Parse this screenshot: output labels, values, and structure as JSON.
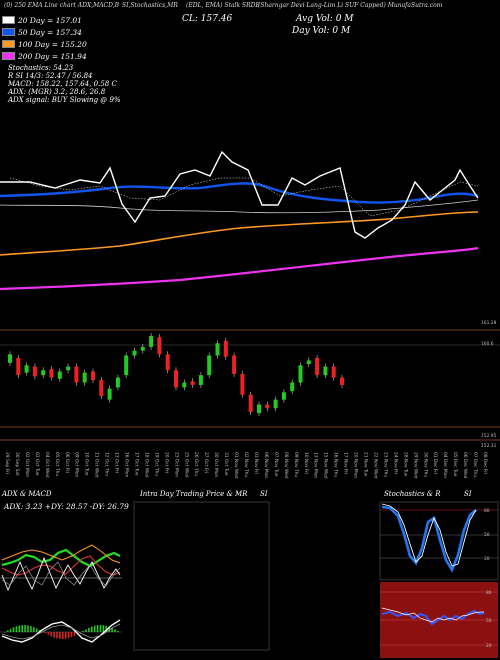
{
  "header": {
    "line1_left": "(0) 250 EMA Line chart ADX,MACD,B",
    "line1_mid": "SI,Stochastics,MR",
    "line1_right_a": "(EDL, EMA) Stalk SRDE",
    "line1_right_b": "(Sharngar Devi Lang-Lim Li SUF Capped) MunafaSutra.com",
    "close_label": "CL: 157.46",
    "avg_vol": "Avg Vol: 0 M",
    "day_vol": "Day Vol: 0   M",
    "legend": [
      {
        "label": "20  Day = 157.01",
        "color": "#ffffff"
      },
      {
        "label": "50  Day = 157.34",
        "color": "#1155ee"
      },
      {
        "label": "100  Day = 155.20",
        "color": "#ff9922"
      },
      {
        "label": "200  Day = 151.94",
        "color": "#ee33ee"
      }
    ],
    "stats": [
      "Stochastics: 54.23",
      "R                      SI 14/3: 52.47 / 56.84",
      "MACD: 158.22, 157.64,  0.58  C"
    ],
    "adx_line": "ADX:                              (MGR) 3.2, 28.6, 26.8",
    "adx_signal": "ADX  signal:                                    BUY Slowing @ 9%"
  },
  "price_axis": {
    "levels": [
      "161.28",
      "160.6",
      "152.95",
      "152.31"
    ]
  },
  "dates": [
    "29 Sep Fri",
    "30 Sep Sat",
    "02 Oct Mon",
    "03 Oct Tue",
    "04 Oct Wed",
    "05 Oct Thu",
    "06 Oct Fri",
    "09 Oct Mon",
    "10 Oct Tue",
    "11 Oct Wed",
    "12 Oct Thu",
    "13 Oct Fri",
    "16 Oct Mon",
    "17 Oct Tue",
    "18 Oct Wed",
    "19 Oct Thu",
    "20 Oct Fri",
    "23 Oct Mon",
    "25 Oct Wed",
    "26 Oct Thu",
    "27 Oct Fri",
    "30 Oct Mon",
    "31 Oct Tue",
    "01 Nov Wed",
    "02 Nov Thu",
    "03 Nov Fri",
    "06 Nov Mon",
    "07 Nov Tue",
    "08 Nov Wed",
    "09 Nov Thu",
    "10 Nov Fri",
    "13 Nov Mon",
    "15 Nov Wed",
    "16 Nov Thu",
    "17 Nov Fri",
    "20 Nov Mon",
    "21 Nov Tue",
    "22 Nov Wed",
    "23 Nov Thu",
    "24 Nov Fri",
    "28 Nov Tue",
    "29 Nov Wed",
    "30 Nov Thu",
    "01 Dec Fri",
    "04 Dec Mon",
    "05 Dec Tue",
    "06 Dec Wed",
    "07 Dec Thu",
    "08 Dec Fri"
  ],
  "panels": {
    "adx_title": "ADX  & MACD",
    "adx_values": "ADX: 3.23  +DY: 28.57  -DY: 26.79",
    "intraday_title": "Intra  Day Trading Price  & MR",
    "intraday_si": "SI",
    "stoch_title": "Stochastics & R",
    "stoch_si": "SI",
    "stoch_levels": [
      "80",
      "50",
      "20"
    ],
    "rsi_levels": [
      "80",
      "50",
      "20"
    ]
  },
  "chart_data": {
    "type": "line",
    "title": "",
    "ylabel": "",
    "moving_averages": [
      {
        "name": "20  Day = 157.01",
        "color": "#ffffff",
        "value": 157.01
      },
      {
        "name": "50  Day = 157.34",
        "color": "#1155ee",
        "value": 157.34
      },
      {
        "name": "100  Day = 155.20",
        "color": "#ff9922",
        "value": 155.2
      },
      {
        "name": "200  Day = 151.94",
        "color": "#ee33ee",
        "value": 151.94
      }
    ],
    "ylim": [
      152.31,
      161.28
    ],
    "candles": [
      {
        "o": 158.6,
        "c": 159.3,
        "up": true
      },
      {
        "o": 159.0,
        "c": 157.6,
        "up": false
      },
      {
        "o": 157.8,
        "c": 158.4,
        "up": true
      },
      {
        "o": 158.3,
        "c": 157.5,
        "up": false
      },
      {
        "o": 157.6,
        "c": 158.0,
        "up": true
      },
      {
        "o": 158.1,
        "c": 157.4,
        "up": false
      },
      {
        "o": 157.3,
        "c": 157.9,
        "up": true
      },
      {
        "o": 158.0,
        "c": 158.3,
        "up": true
      },
      {
        "o": 158.3,
        "c": 157.0,
        "up": false
      },
      {
        "o": 157.0,
        "c": 157.8,
        "up": true
      },
      {
        "o": 157.9,
        "c": 157.2,
        "up": false
      },
      {
        "o": 157.2,
        "c": 155.9,
        "up": false
      },
      {
        "o": 155.6,
        "c": 156.5,
        "up": true
      },
      {
        "o": 156.6,
        "c": 157.4,
        "up": true
      },
      {
        "o": 157.6,
        "c": 159.2,
        "up": true
      },
      {
        "o": 159.2,
        "c": 159.6,
        "up": true
      },
      {
        "o": 159.6,
        "c": 159.9,
        "up": true
      },
      {
        "o": 159.9,
        "c": 160.8,
        "up": true
      },
      {
        "o": 160.7,
        "c": 159.3,
        "up": false
      },
      {
        "o": 159.3,
        "c": 158.0,
        "up": false
      },
      {
        "o": 158.0,
        "c": 156.6,
        "up": false
      },
      {
        "o": 156.6,
        "c": 157.0,
        "up": true
      },
      {
        "o": 157.1,
        "c": 156.8,
        "up": false
      },
      {
        "o": 156.8,
        "c": 157.6,
        "up": true
      },
      {
        "o": 157.6,
        "c": 159.2,
        "up": true
      },
      {
        "o": 159.2,
        "c": 160.2,
        "up": true
      },
      {
        "o": 160.4,
        "c": 159.1,
        "up": false
      },
      {
        "o": 159.2,
        "c": 157.7,
        "up": false
      },
      {
        "o": 157.7,
        "c": 156.0,
        "up": false
      },
      {
        "o": 156.0,
        "c": 154.6,
        "up": false
      },
      {
        "o": 154.5,
        "c": 155.2,
        "up": true
      },
      {
        "o": 155.2,
        "c": 154.9,
        "up": false
      },
      {
        "o": 154.9,
        "c": 155.6,
        "up": true
      },
      {
        "o": 155.6,
        "c": 156.2,
        "up": true
      },
      {
        "o": 156.3,
        "c": 157.0,
        "up": true
      },
      {
        "o": 157.0,
        "c": 158.4,
        "up": true
      },
      {
        "o": 158.5,
        "c": 158.8,
        "up": true
      },
      {
        "o": 159.0,
        "c": 157.6,
        "up": false
      },
      {
        "o": 157.6,
        "c": 158.3,
        "up": true
      },
      {
        "o": 158.3,
        "c": 157.4,
        "up": false
      },
      {
        "o": 157.4,
        "c": 156.8,
        "up": false
      }
    ]
  }
}
